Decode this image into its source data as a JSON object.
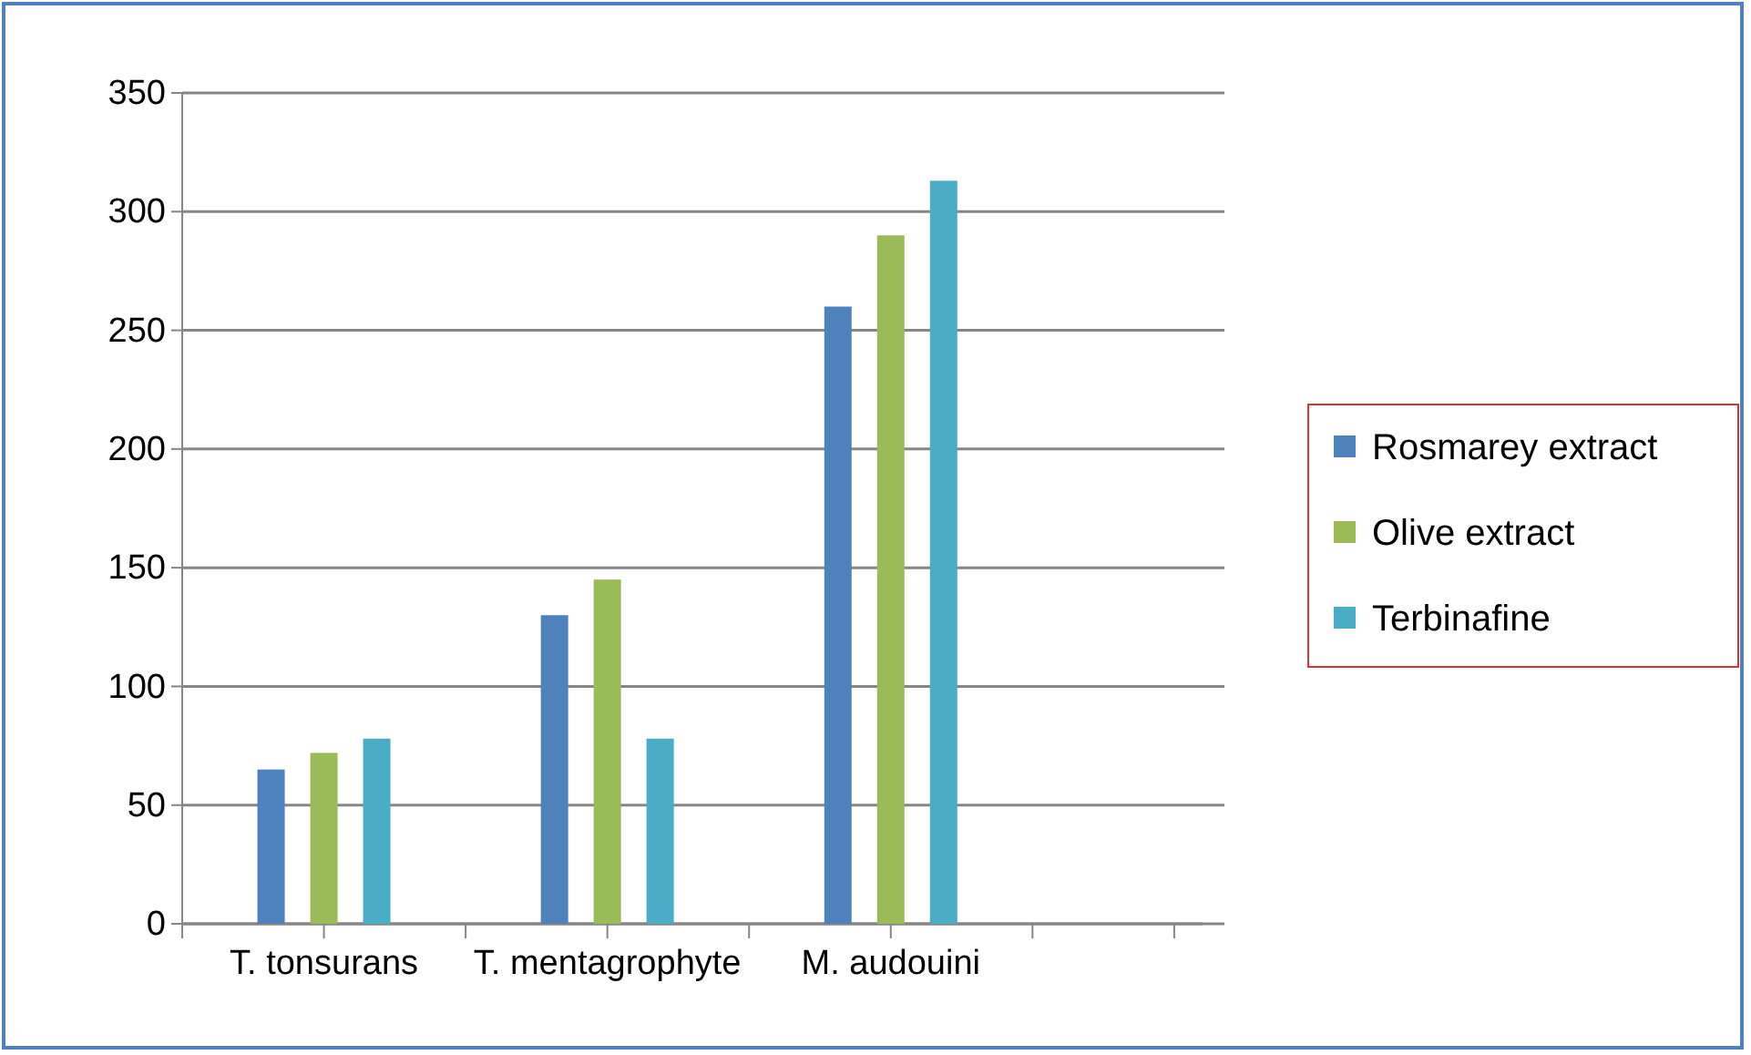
{
  "chart_data": {
    "type": "bar",
    "categories": [
      "T. tonsurans",
      "T. mentagrophyte",
      "M. audouini"
    ],
    "series": [
      {
        "name": "Rosmarey extract",
        "color": "#4f81bd",
        "values": [
          65,
          130,
          260
        ]
      },
      {
        "name": "Olive extract",
        "color": "#9bbb59",
        "values": [
          72,
          145,
          290
        ]
      },
      {
        "name": "Terbinafine",
        "color": "#4bacc6",
        "values": [
          78,
          78,
          313
        ]
      }
    ],
    "ylim": [
      0,
      350
    ],
    "yticks": [
      0,
      50,
      100,
      150,
      200,
      250,
      300,
      350
    ],
    "grid": "y",
    "legend": "right"
  }
}
